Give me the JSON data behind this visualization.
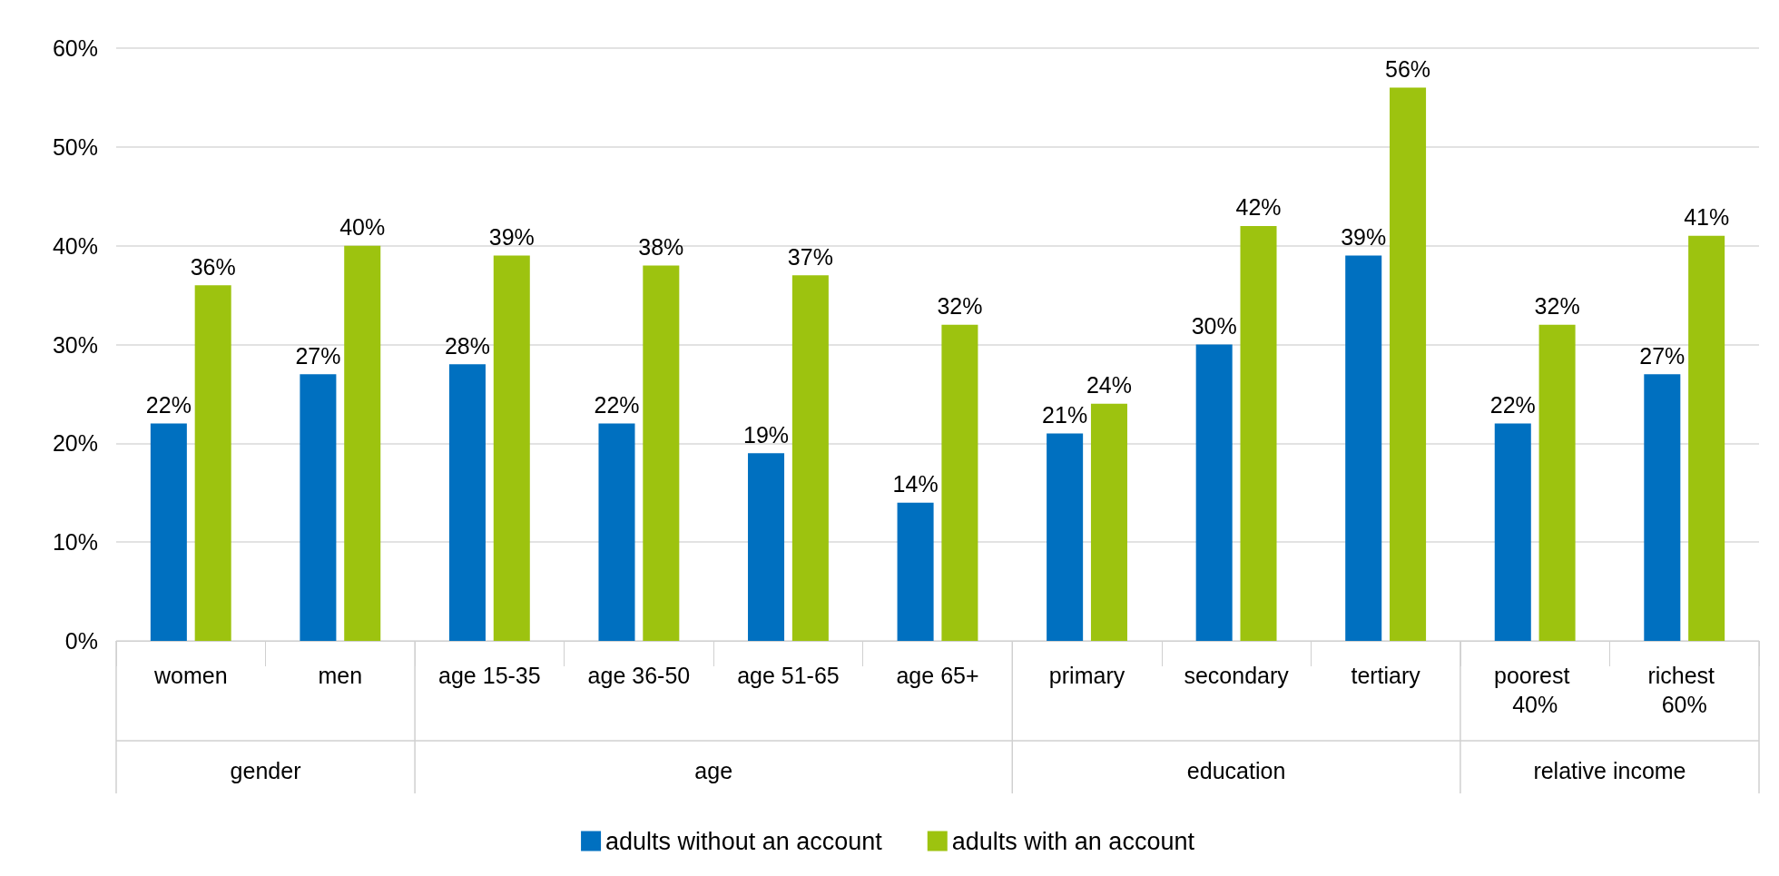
{
  "chart_data": {
    "type": "bar",
    "categories": [
      "women",
      "men",
      "age 15-35",
      "age 36-50",
      "age 51-65",
      "age 65+",
      "primary",
      "secondary",
      "tertiary",
      "poorest 40%",
      "richest 60%"
    ],
    "series": [
      {
        "name": "adults without an account",
        "color": "#0070c0",
        "values": [
          22,
          27,
          28,
          22,
          19,
          14,
          21,
          30,
          39,
          22,
          27
        ],
        "value_labels": [
          "22%",
          "27%",
          "28%",
          "22%",
          "19%",
          "14%",
          "21%",
          "30%",
          "39%",
          "22%",
          "27%"
        ]
      },
      {
        "name": "adults with an account",
        "color": "#9dc30f",
        "values": [
          36,
          40,
          39,
          38,
          37,
          32,
          24,
          42,
          56,
          32,
          41
        ],
        "value_labels": [
          "36%",
          "40%",
          "39%",
          "38%",
          "37%",
          "32%",
          "24%",
          "42%",
          "56%",
          "32%",
          "41%"
        ]
      }
    ],
    "ylim": [
      0,
      60
    ],
    "yticks": [
      {
        "value": 0,
        "label": "0%"
      },
      {
        "value": 10,
        "label": "10%"
      },
      {
        "value": 20,
        "label": "20%"
      },
      {
        "value": 30,
        "label": "30%"
      },
      {
        "value": 40,
        "label": "40%"
      },
      {
        "value": 50,
        "label": "50%"
      },
      {
        "value": 60,
        "label": "60%"
      }
    ],
    "annotations": [
      "gender",
      "age",
      "education",
      "relative income"
    ],
    "grid": "y",
    "legend": "bottom"
  }
}
